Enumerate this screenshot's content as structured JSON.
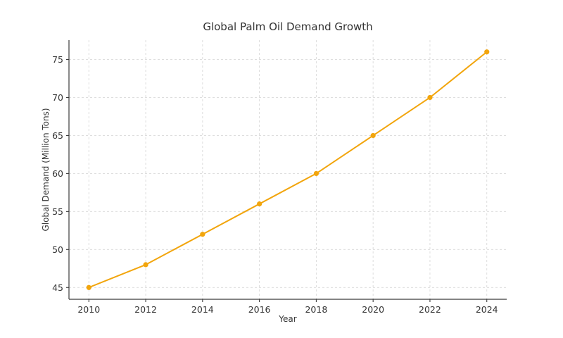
{
  "page": {
    "background": "#ffffff"
  },
  "chart_data": {
    "type": "line",
    "title": "Global Palm Oil Demand Growth",
    "xlabel": "Year",
    "ylabel": "Global Demand (Million Tons)",
    "x": [
      2010,
      2012,
      2014,
      2016,
      2018,
      2020,
      2022,
      2024
    ],
    "values": [
      45,
      48,
      52,
      56,
      60,
      65,
      70,
      76
    ],
    "series_name": "Global Palm Oil Demand",
    "x_ticks": [
      "2010",
      "2012",
      "2014",
      "2016",
      "2018",
      "2020",
      "2022",
      "2024"
    ],
    "y_ticks": [
      45,
      50,
      55,
      60,
      65,
      70,
      75
    ],
    "xlim": [
      2009.3,
      2024.7
    ],
    "ylim": [
      43.45,
      77.55
    ],
    "grid": true,
    "grid_style": "dashed",
    "legend_position": "none",
    "line_color": "#F2A50C",
    "marker": "circle",
    "grid_color": "#d9d9d9",
    "axis_color": "#3b3b3b",
    "text_color": "#333333"
  }
}
